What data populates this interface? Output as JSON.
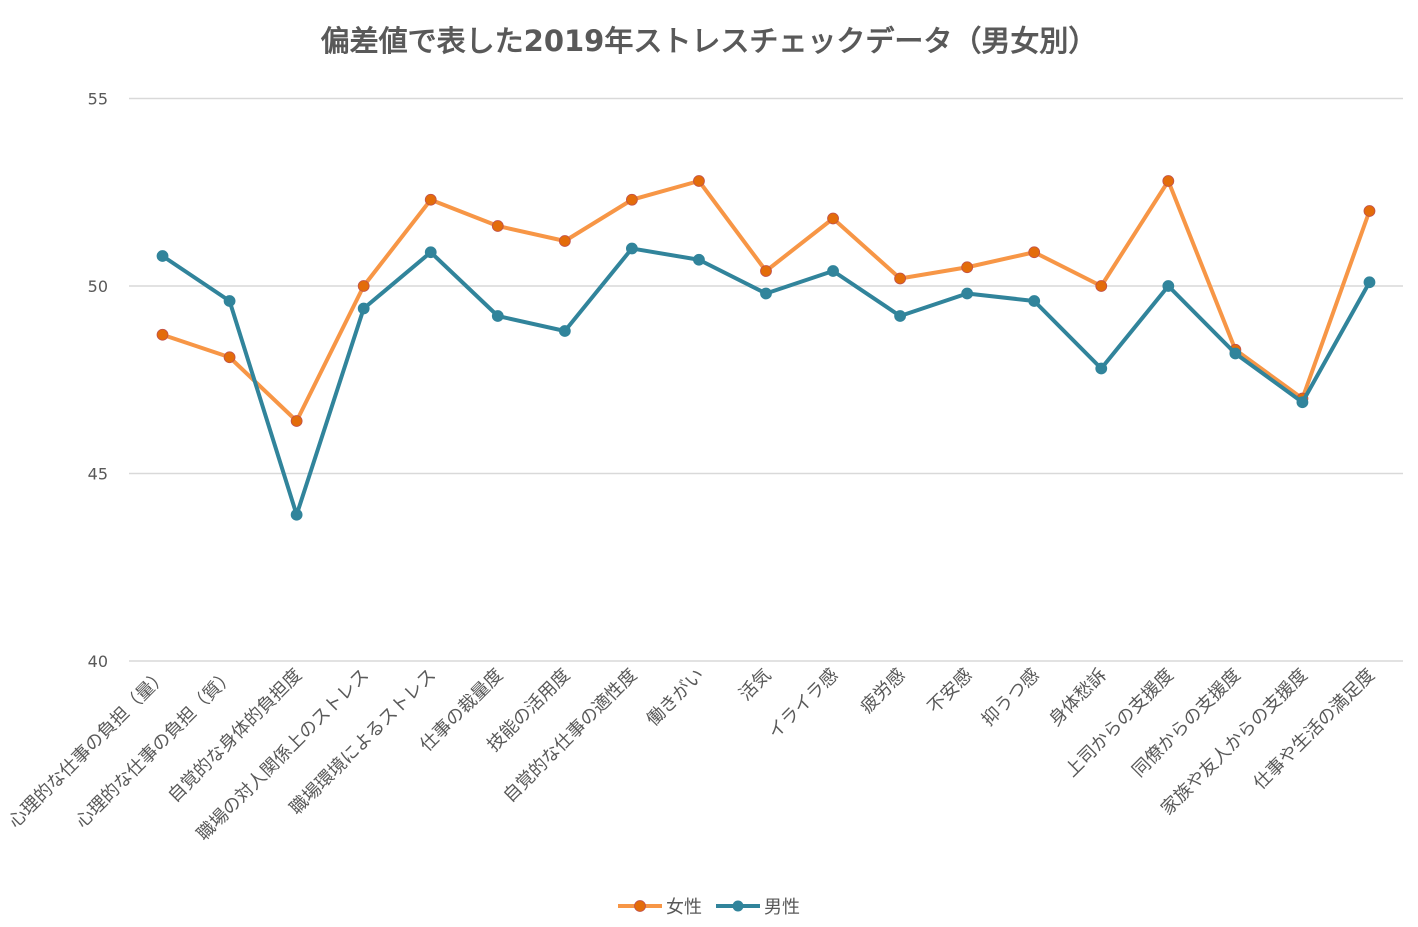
{
  "chart_data": {
    "type": "line",
    "title": "偏差値で表した2019年ストレスチェックデータ（男女別）",
    "xlabel": "",
    "ylabel": "",
    "ylim": [
      40,
      55
    ],
    "yticks": [
      40,
      45,
      50,
      55
    ],
    "grid": true,
    "legend_position": "bottom",
    "categories": [
      "心理的な仕事の負担（量）",
      "心理的な仕事の負担（質）",
      "自覚的な身体的負担度",
      "職場の対人関係上のストレス",
      "職場環境によるストレス",
      "仕事の裁量度",
      "技能の活用度",
      "自覚的な仕事の適性度",
      "働きがい",
      "活気",
      "イライラ感",
      "疲労感",
      "不安感",
      "抑うつ感",
      "身体愁訴",
      "上司からの支援度",
      "同僚からの支援度",
      "家族や友人からの支援度",
      "仕事や生活の満足度"
    ],
    "series": [
      {
        "name": "女性",
        "color": "#F79646",
        "marker_color": "#E36C0A",
        "values": [
          48.7,
          48.1,
          46.4,
          50.0,
          52.3,
          51.6,
          51.2,
          52.3,
          52.8,
          50.4,
          51.8,
          50.2,
          50.5,
          50.9,
          50.0,
          52.8,
          48.3,
          47.0,
          52.0
        ]
      },
      {
        "name": "男性",
        "color": "#31849B",
        "marker_color": "#31849B",
        "values": [
          50.8,
          49.6,
          43.9,
          49.4,
          50.9,
          49.2,
          48.8,
          51.0,
          50.7,
          49.8,
          50.4,
          49.2,
          49.8,
          49.6,
          47.8,
          50.0,
          48.2,
          46.9,
          50.1
        ]
      }
    ]
  }
}
